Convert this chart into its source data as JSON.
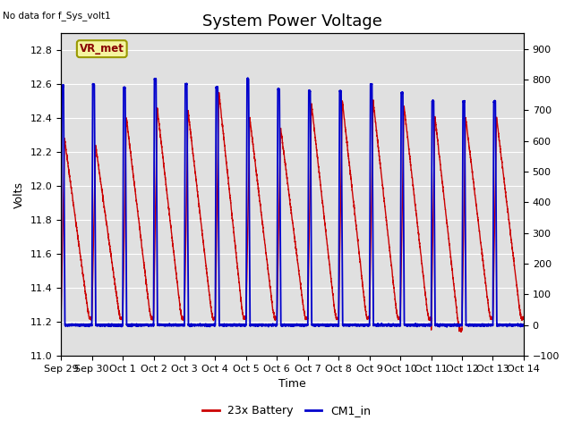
{
  "title": "System Power Voltage",
  "no_data_label": "No data for f_Sys_volt1",
  "vr_met_label": "VR_met",
  "xlabel": "Time",
  "ylabel_left": "Volts",
  "ylim_left": [
    11.0,
    12.9
  ],
  "ylim_right": [
    -100,
    950
  ],
  "yticks_left": [
    11.0,
    11.2,
    11.4,
    11.6,
    11.8,
    12.0,
    12.2,
    12.4,
    12.6,
    12.8
  ],
  "yticks_right": [
    -100,
    0,
    100,
    200,
    300,
    400,
    500,
    600,
    700,
    800,
    900
  ],
  "xtick_labels": [
    "Sep 29",
    "Sep 30",
    "Oct 1",
    "Oct 2",
    "Oct 3",
    "Oct 4",
    "Oct 5",
    "Oct 6",
    "Oct 7",
    "Oct 8",
    "Oct 9",
    "Oct 10",
    "Oct 11",
    "Oct 12",
    "Oct 13",
    "Oct 14"
  ],
  "color_red": "#cc0000",
  "color_blue": "#0000cc",
  "legend_entries": [
    "23x Battery",
    "CM1_in"
  ],
  "background_plot": "#e0e0e0",
  "background_fig": "#ffffff",
  "title_fontsize": 13,
  "label_fontsize": 9,
  "tick_fontsize": 8,
  "n_days": 15,
  "period": 1.0,
  "blue_v_high": 12.6,
  "blue_v_low": 11.18,
  "red_v_high": 12.48,
  "red_v_low": 11.22
}
